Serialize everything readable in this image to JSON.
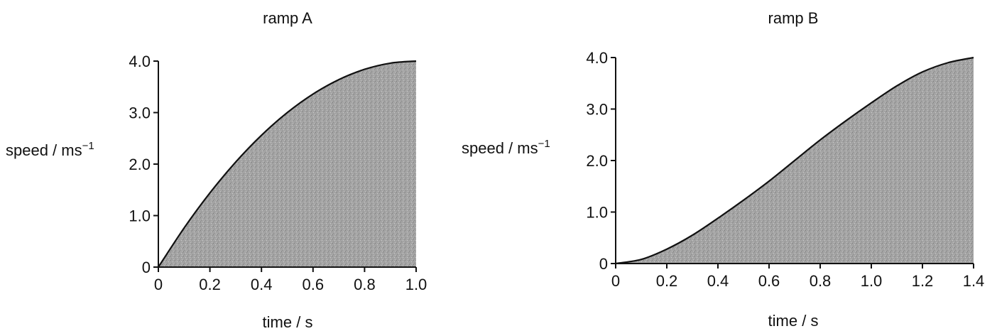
{
  "colors": {
    "ink": "#111111",
    "fill": "#a6a6a6",
    "background": "#ffffff"
  },
  "chart_data": [
    {
      "type": "area",
      "title": "ramp A",
      "xlabel": "time / s",
      "ylabel": "speed / ms",
      "ylabel_sup": "−1",
      "xlim": [
        0,
        1.0
      ],
      "ylim": [
        0,
        4.0
      ],
      "x_ticks": [
        "0",
        "0.2",
        "0.4",
        "0.6",
        "0.8",
        "1.0"
      ],
      "y_ticks": [
        "0",
        "1.0",
        "2.0",
        "3.0",
        "4.0"
      ],
      "grid": false,
      "x": [
        0,
        0.1,
        0.2,
        0.3,
        0.4,
        0.5,
        0.6,
        0.7,
        0.8,
        0.9,
        1.0
      ],
      "y": [
        0,
        0.76,
        1.44,
        2.04,
        2.56,
        3.0,
        3.36,
        3.64,
        3.84,
        3.96,
        4.0
      ]
    },
    {
      "type": "area",
      "title": "ramp B",
      "xlabel": "time / s",
      "ylabel": "speed / ms",
      "ylabel_sup": "−1",
      "xlim": [
        0,
        1.4
      ],
      "ylim": [
        0,
        4.0
      ],
      "x_ticks": [
        "0",
        "0.2",
        "0.4",
        "0.6",
        "0.8",
        "1.0",
        "1.2",
        "1.4"
      ],
      "y_ticks": [
        "0",
        "1.0",
        "2.0",
        "3.0",
        "4.0"
      ],
      "grid": false,
      "x": [
        0,
        0.1,
        0.2,
        0.3,
        0.4,
        0.5,
        0.6,
        0.7,
        0.8,
        0.9,
        1.0,
        1.1,
        1.2,
        1.3,
        1.4
      ],
      "y": [
        0,
        0.08,
        0.28,
        0.55,
        0.88,
        1.23,
        1.6,
        2.0,
        2.4,
        2.77,
        3.12,
        3.45,
        3.72,
        3.9,
        4.0
      ]
    }
  ]
}
